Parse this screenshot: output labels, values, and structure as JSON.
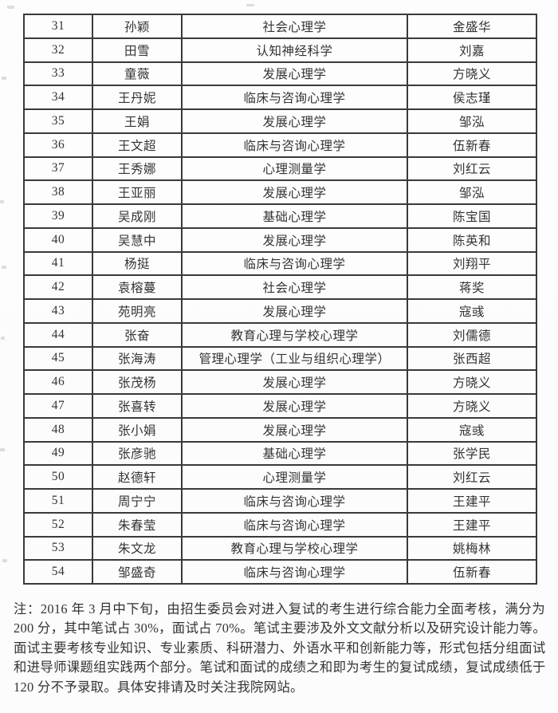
{
  "page": {
    "kind": "scanned-admission-roster",
    "language": "zh-CN",
    "background_color": "#fdfdfd",
    "text_color": "#333333",
    "table_border_color": "#3a3a3a"
  },
  "table": {
    "rows": [
      {
        "no": "31",
        "name": "孙颖",
        "major": "社会心理学",
        "advisor": "金盛华"
      },
      {
        "no": "32",
        "name": "田雪",
        "major": "认知神经科学",
        "advisor": "刘嘉"
      },
      {
        "no": "33",
        "name": "童薇",
        "major": "发展心理学",
        "advisor": "方晓义"
      },
      {
        "no": "34",
        "name": "王丹妮",
        "major": "临床与咨询心理学",
        "advisor": "侯志瑾"
      },
      {
        "no": "35",
        "name": "王娟",
        "major": "发展心理学",
        "advisor": "邹泓"
      },
      {
        "no": "36",
        "name": "王文超",
        "major": "临床与咨询心理学",
        "advisor": "伍新春"
      },
      {
        "no": "37",
        "name": "王秀娜",
        "major": "心理测量学",
        "advisor": "刘红云"
      },
      {
        "no": "38",
        "name": "王亚丽",
        "major": "发展心理学",
        "advisor": "邹泓"
      },
      {
        "no": "39",
        "name": "吴成刚",
        "major": "基础心理学",
        "advisor": "陈宝国"
      },
      {
        "no": "40",
        "name": "吴慧中",
        "major": "发展心理学",
        "advisor": "陈英和"
      },
      {
        "no": "41",
        "name": "杨挺",
        "major": "临床与咨询心理学",
        "advisor": "刘翔平"
      },
      {
        "no": "42",
        "name": "袁榕蔓",
        "major": "社会心理学",
        "advisor": "蒋奖"
      },
      {
        "no": "43",
        "name": "苑明亮",
        "major": "发展心理学",
        "advisor": "寇彧"
      },
      {
        "no": "44",
        "name": "张奋",
        "major": "教育心理与学校心理学",
        "advisor": "刘儒德"
      },
      {
        "no": "45",
        "name": "张海涛",
        "major": "管理心理学（工业与组织心理学）",
        "advisor": "张西超"
      },
      {
        "no": "46",
        "name": "张茂杨",
        "major": "发展心理学",
        "advisor": "方晓义"
      },
      {
        "no": "47",
        "name": "张喜转",
        "major": "发展心理学",
        "advisor": "方晓义"
      },
      {
        "no": "48",
        "name": "张小娟",
        "major": "发展心理学",
        "advisor": "寇彧"
      },
      {
        "no": "49",
        "name": "张彦驰",
        "major": "基础心理学",
        "advisor": "张学民"
      },
      {
        "no": "50",
        "name": "赵德轩",
        "major": "心理测量学",
        "advisor": "刘红云"
      },
      {
        "no": "51",
        "name": "周宁宁",
        "major": "临床与咨询心理学",
        "advisor": "王建平"
      },
      {
        "no": "52",
        "name": "朱春莹",
        "major": "临床与咨询心理学",
        "advisor": "王建平"
      },
      {
        "no": "53",
        "name": "朱文龙",
        "major": "教育心理与学校心理学",
        "advisor": "姚梅林"
      },
      {
        "no": "54",
        "name": "邹盛奇",
        "major": "临床与咨询心理学",
        "advisor": "伍新春"
      }
    ]
  },
  "note": {
    "lines": [
      "注：2016 年 3 月中下旬，由招生委员会对进入复试的考生进行综合能力全面考核，满分为",
      "200 分，其中笔试占 30%，面试占 70%。笔试主要涉及外文文献分析以及研究设计能力等。",
      "面试主要考核专业知识、专业素质、科研潜力、外语水平和创新能力等，形式包括分组面试",
      "和进导师课题组实践两个部分。笔试和面试的成绩之和即为考生的复试成绩，复试成绩低于",
      "120 分不予录取。具体安排请及时关注我院网站。"
    ]
  }
}
